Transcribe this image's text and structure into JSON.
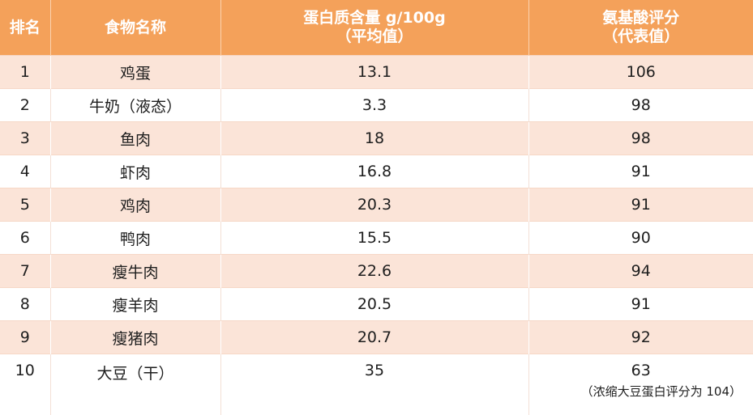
{
  "headers": {
    "rank": "排名",
    "name": "食物名称",
    "protein_line1": "蛋白质含量 g/100g",
    "protein_line2": "（平均值）",
    "amino_line1": "氨基酸评分",
    "amino_line2": "（代表值）"
  },
  "rows": [
    {
      "rank": "1",
      "name": "鸡蛋",
      "protein": "13.1",
      "amino": "106"
    },
    {
      "rank": "2",
      "name": "牛奶（液态）",
      "protein": "3.3",
      "amino": "98"
    },
    {
      "rank": "3",
      "name": "鱼肉",
      "protein": "18",
      "amino": "98"
    },
    {
      "rank": "4",
      "name": "虾肉",
      "protein": "16.8",
      "amino": "91"
    },
    {
      "rank": "5",
      "name": "鸡肉",
      "protein": "20.3",
      "amino": "91"
    },
    {
      "rank": "6",
      "name": "鸭肉",
      "protein": "15.5",
      "amino": "90"
    },
    {
      "rank": "7",
      "name": "瘦牛肉",
      "protein": "22.6",
      "amino": "94"
    },
    {
      "rank": "8",
      "name": "瘦羊肉",
      "protein": "20.5",
      "amino": "91"
    },
    {
      "rank": "9",
      "name": "瘦猪肉",
      "protein": "20.7",
      "amino": "92"
    },
    {
      "rank": "10",
      "name": "大豆（干）",
      "protein": "35",
      "amino": "63",
      "note": "（浓缩大豆蛋白评分为 104）"
    }
  ],
  "colors": {
    "header_bg": "#f4a15a",
    "stripe_bg": "#fbe4d8"
  }
}
